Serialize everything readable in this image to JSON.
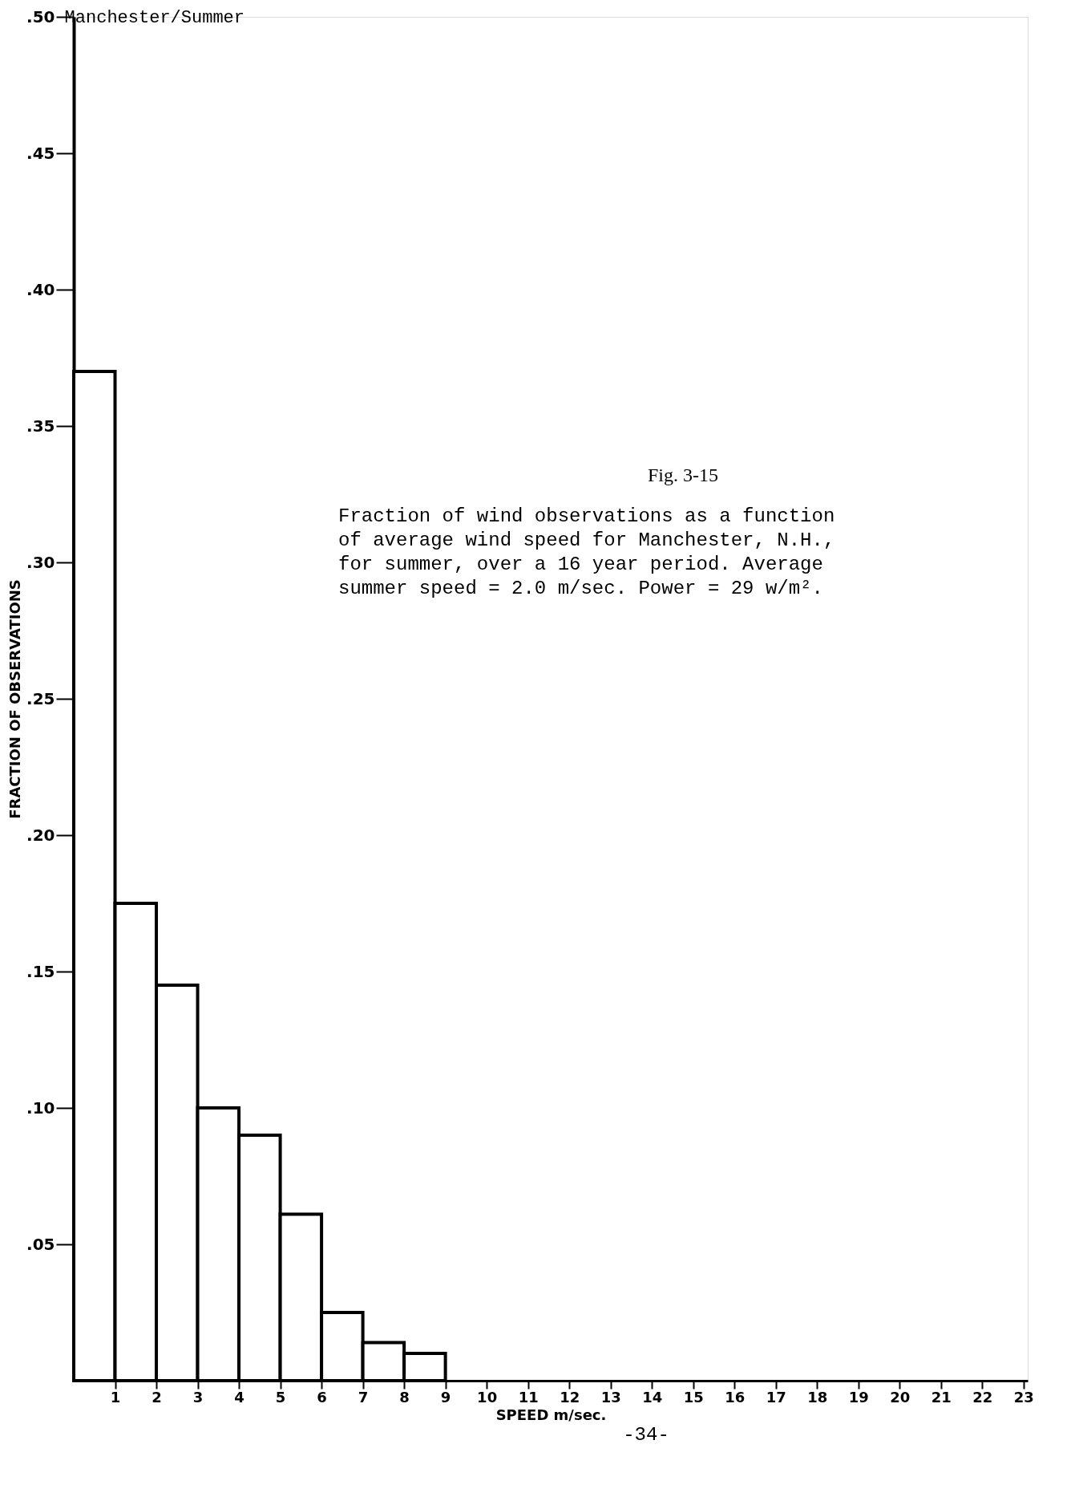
{
  "chart_data": {
    "type": "histogram",
    "title": "Manchester/Summer",
    "xlabel": "SPEED m/sec.",
    "ylabel": "FRACTION OF OBSERVATIONS",
    "bins": [
      0,
      1,
      2,
      3,
      4,
      5,
      6,
      7,
      8,
      9
    ],
    "values": [
      0.37,
      0.175,
      0.145,
      0.1,
      0.09,
      0.061,
      0.025,
      0.014,
      0.01
    ],
    "color": "#000000",
    "xlim": [
      0,
      23.1
    ],
    "xticks": [
      1,
      2,
      3,
      4,
      5,
      6,
      7,
      8,
      9,
      10,
      11,
      12,
      13,
      14,
      15,
      16,
      17,
      18,
      19,
      20,
      21,
      22,
      23
    ],
    "ylim": [
      0,
      0.5
    ],
    "yticks": [
      {
        "value": 0.05,
        "label": ".05"
      },
      {
        "value": 0.1,
        "label": ".10"
      },
      {
        "value": 0.15,
        "label": ".15"
      },
      {
        "value": 0.2,
        "label": ".20"
      },
      {
        "value": 0.25,
        "label": ".25"
      },
      {
        "value": 0.3,
        "label": ".30"
      },
      {
        "value": 0.35,
        "label": ".35"
      },
      {
        "value": 0.4,
        "label": ".40"
      },
      {
        "value": 0.45,
        "label": ".45"
      },
      {
        "value": 0.5,
        "label": ".50"
      }
    ],
    "grid": false,
    "annotations": [
      "Fig. 3-15",
      "Fraction of wind observations as a function\nof average wind speed for Manchester, N.H.,\nfor summer, over a 16 year period.  Average\nsummer speed = 2.0 m/sec.  Power = 29 w/m².",
      "-34-"
    ]
  }
}
